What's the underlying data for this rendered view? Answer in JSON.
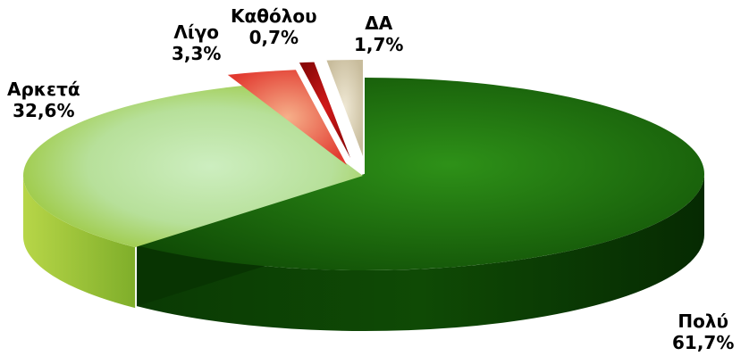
{
  "chart_data": {
    "type": "pie",
    "title": "",
    "slices": [
      {
        "label": "Πολύ",
        "value": 61.7,
        "value_text": "61,7%",
        "color": "#1a6b0a"
      },
      {
        "label": "Αρκετά",
        "value": 32.6,
        "value_text": "32,6%",
        "color": "#a9d35a"
      },
      {
        "label": "Λίγο",
        "value": 3.3,
        "value_text": "3,3%",
        "color": "#e8473a"
      },
      {
        "label": "Καθόλου",
        "value": 0.7,
        "value_text": "0,7%",
        "color": "#b01010"
      },
      {
        "label": "ΔΑ",
        "value": 1.7,
        "value_text": "1,7%",
        "color": "#d9cfb4"
      }
    ],
    "start_angle_deg": -90,
    "direction": "clockwise",
    "style": "3d-exploded"
  }
}
